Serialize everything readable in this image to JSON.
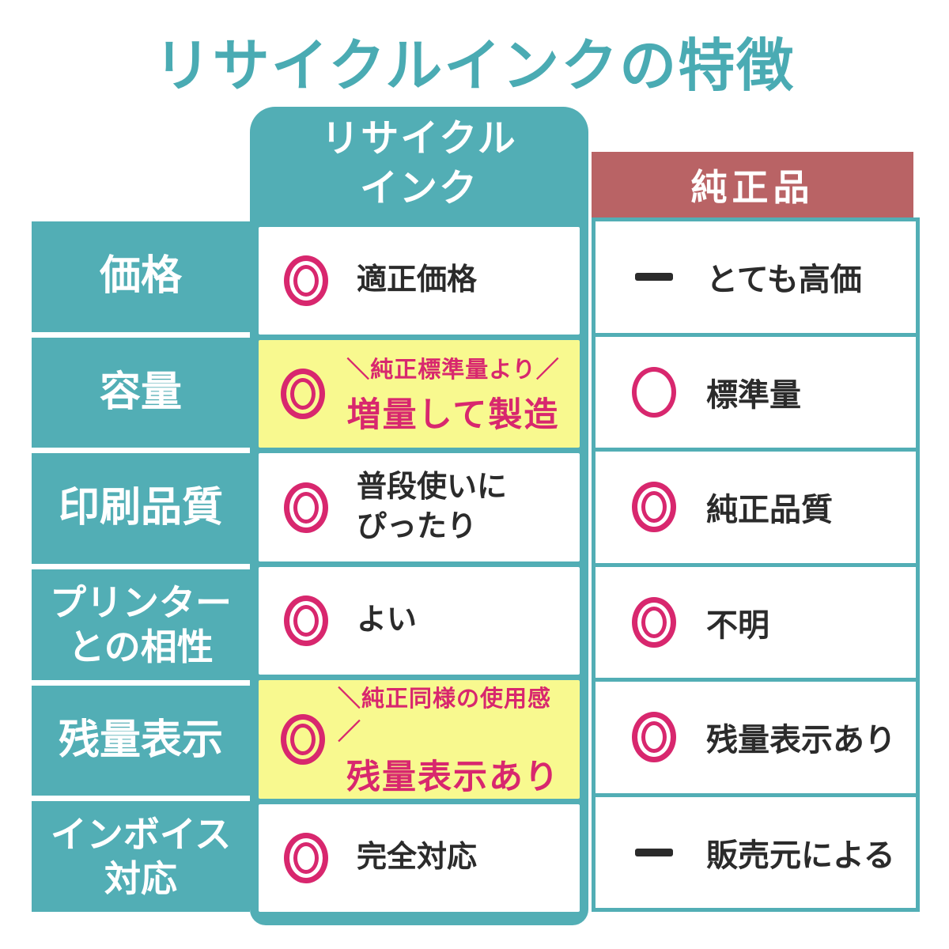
{
  "title": "リサイクルインクの特徴",
  "colors": {
    "teal": "#52AEB5",
    "mauve": "#B96365",
    "highlight_yellow": "#F8F98F",
    "accent_pink": "#D8276E",
    "text_dark": "#2B2B2B"
  },
  "columns": {
    "recycle": {
      "label": "リサイクル\nインク"
    },
    "genuine": {
      "label": "純正品"
    }
  },
  "rows": [
    {
      "label": "価格",
      "recycle": {
        "mark": "double-circle",
        "text": "適正価格",
        "highlight": false
      },
      "genuine": {
        "mark": "dash",
        "text": "とても高価"
      }
    },
    {
      "label": "容量",
      "recycle": {
        "mark": "double-circle",
        "callout": "＼純正標準量より／",
        "text": "増量して製造",
        "highlight": true
      },
      "genuine": {
        "mark": "single-circle",
        "text": "標準量"
      }
    },
    {
      "label": "印刷品質",
      "recycle": {
        "mark": "double-circle",
        "text": "普段使いに\nぴったり",
        "highlight": false
      },
      "genuine": {
        "mark": "double-circle",
        "text": "純正品質"
      }
    },
    {
      "label": "プリンター\nとの相性",
      "recycle": {
        "mark": "double-circle",
        "text": "よい",
        "highlight": false
      },
      "genuine": {
        "mark": "double-circle",
        "text": "不明"
      }
    },
    {
      "label": "残量表示",
      "recycle": {
        "mark": "double-circle",
        "callout": "＼純正同様の使用感／",
        "text": "残量表示あり",
        "highlight": true
      },
      "genuine": {
        "mark": "double-circle",
        "text": "残量表示あり"
      }
    },
    {
      "label": "インボイス\n対応",
      "recycle": {
        "mark": "double-circle",
        "text": "完全対応",
        "highlight": false
      },
      "genuine": {
        "mark": "dash",
        "text": "販売元による"
      }
    }
  ]
}
